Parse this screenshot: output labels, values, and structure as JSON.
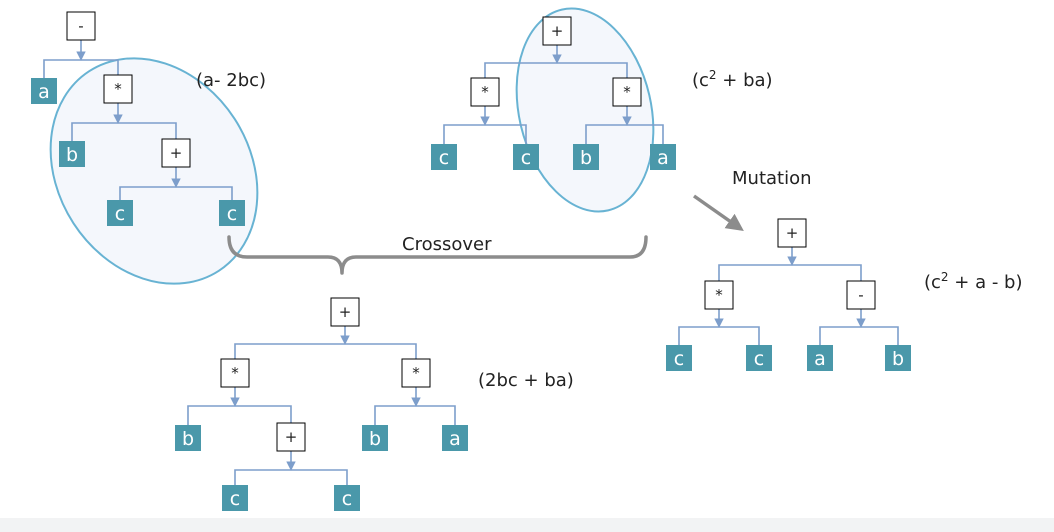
{
  "colors": {
    "leaf_fill": "#4a98aa",
    "connector": "#7d9ecb",
    "ellipse_stroke": "#68b3d3",
    "ellipse_fill": "#f4f7fc",
    "bracket": "#8c8c8c"
  },
  "labels": {
    "parent1_expr": "(a- 2bc)",
    "parent2_expr_pre": "(c",
    "parent2_expr_sup": "2",
    "parent2_expr_post": " + ba)",
    "child_expr": "(2bc + ba)",
    "mutated_expr_pre": "(c",
    "mutated_expr_sup": "2",
    "mutated_expr_post": " + a - b)",
    "crossover": "Crossover",
    "mutation": "Mutation"
  },
  "trees": {
    "parent1": {
      "root": {
        "op": "-"
      },
      "left_leaf": "a",
      "mul": {
        "op": "*"
      },
      "mul_left_leaf": "b",
      "plus": {
        "op": "+"
      },
      "plus_left_leaf": "c",
      "plus_right_leaf": "c"
    },
    "parent2": {
      "root": {
        "op": "+"
      },
      "mul_left": {
        "op": "*"
      },
      "mul_left_leaves": [
        "c",
        "c"
      ],
      "mul_right": {
        "op": "*"
      },
      "mul_right_leaves": [
        "b",
        "a"
      ]
    },
    "child": {
      "root": {
        "op": "+"
      },
      "mul_left": {
        "op": "*"
      },
      "mul_left_leaf": "b",
      "plus": {
        "op": "+"
      },
      "plus_leaves": [
        "c",
        "c"
      ],
      "mul_right": {
        "op": "*"
      },
      "mul_right_leaves": [
        "b",
        "a"
      ]
    },
    "mutated": {
      "root": {
        "op": "+"
      },
      "mul": {
        "op": "*"
      },
      "mul_leaves": [
        "c",
        "c"
      ],
      "minus": {
        "op": "-"
      },
      "minus_leaves": [
        "a",
        "b"
      ]
    }
  }
}
